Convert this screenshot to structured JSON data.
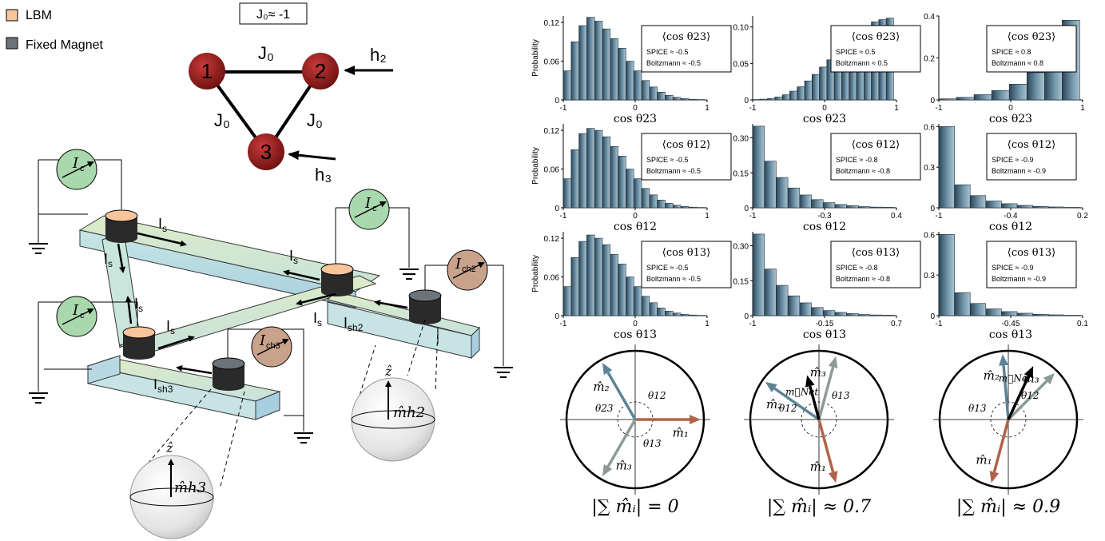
{
  "legend": {
    "lbm": {
      "label": "LBM",
      "color": "#f7c49b"
    },
    "fixed": {
      "label": "Fixed Magnet",
      "color": "#6d7479"
    }
  },
  "graph": {
    "title": "J₀≈ -1",
    "nodes": [
      "1",
      "2",
      "3"
    ],
    "edges": [
      "J₀",
      "J₀",
      "J₀"
    ],
    "fields": [
      "h₂",
      "h₃"
    ]
  },
  "circuit": {
    "currents": {
      "ic": "I",
      "ic_sub": "c",
      "is": "I",
      "is_sub": "s",
      "ich2": "I",
      "ich2_sub": "ch2",
      "ich3": "I",
      "ich3_sub": "ch3",
      "ish2": "I",
      "ish2_sub": "sh2",
      "ish3": "I",
      "ish3_sub": "sh3"
    },
    "sphere_labels": [
      "m̂h2",
      "m̂h3"
    ],
    "z_label": "ẑ"
  },
  "chart_data": [
    {
      "type": "bar",
      "row": 0,
      "col": 0,
      "xlabel": "cos θ23",
      "ylabel": "Probability",
      "xlim": [
        -1,
        1
      ],
      "ylim": [
        0,
        0.13
      ],
      "xticks": [
        "-1",
        "0",
        "1"
      ],
      "yticks": [
        "0",
        "0.06",
        "0.12"
      ],
      "values": [
        0.045,
        0.09,
        0.115,
        0.128,
        0.122,
        0.11,
        0.095,
        0.08,
        0.06,
        0.045,
        0.03,
        0.02,
        0.012,
        0.007,
        0.004,
        0.002,
        0.001,
        0.0005
      ],
      "annotation": {
        "title": "⟨cos θ23⟩",
        "spice": "SPICE ≈ -0.5",
        "boltz": "Boltzmann ≈ -0.5"
      }
    },
    {
      "type": "bar",
      "row": 0,
      "col": 1,
      "xlabel": "cos θ23",
      "ylabel": "",
      "xlim": [
        -1,
        1
      ],
      "ylim": [
        0,
        0.115
      ],
      "xticks": [
        "-1",
        "0",
        "1"
      ],
      "yticks": [
        "0",
        "0.05",
        "0.10"
      ],
      "values": [
        0.0005,
        0.001,
        0.002,
        0.004,
        0.007,
        0.012,
        0.018,
        0.026,
        0.035,
        0.045,
        0.055,
        0.066,
        0.077,
        0.087,
        0.095,
        0.102,
        0.107,
        0.11,
        0.112
      ],
      "annotation": {
        "title": "⟨cos θ23⟩",
        "spice": "SPICE ≈ 0.5",
        "boltz": "Boltzmann ≈ 0.5"
      }
    },
    {
      "type": "bar",
      "row": 0,
      "col": 2,
      "xlabel": "cos θ23",
      "ylabel": "",
      "xlim": [
        -1,
        1
      ],
      "ylim": [
        0,
        0.4
      ],
      "xticks": [
        "-1",
        "0",
        "1"
      ],
      "yticks": [
        "0",
        "0.2",
        "0.4"
      ],
      "values": [
        0.005,
        0.012,
        0.025,
        0.045,
        0.075,
        0.13,
        0.21,
        0.38
      ],
      "annotation": {
        "title": "⟨cos θ23⟩",
        "spice": "SPICE ≈ 0.8",
        "boltz": "Boltzmann ≈ 0.8"
      }
    },
    {
      "type": "bar",
      "row": 1,
      "col": 0,
      "xlabel": "cos θ12",
      "ylabel": "Probability",
      "xlim": [
        -1,
        1
      ],
      "ylim": [
        0,
        0.13
      ],
      "xticks": [
        "-1",
        "0",
        "1"
      ],
      "yticks": [
        "0",
        "0.06",
        "0.12"
      ],
      "values": [
        0.045,
        0.09,
        0.115,
        0.123,
        0.12,
        0.11,
        0.095,
        0.08,
        0.06,
        0.045,
        0.03,
        0.02,
        0.012,
        0.007,
        0.004,
        0.002,
        0.001,
        0.0005
      ],
      "annotation": {
        "title": "⟨cos θ12⟩",
        "spice": "SPICE ≈ -0.5",
        "boltz": "Boltzmann ≈ -0.5"
      }
    },
    {
      "type": "bar",
      "row": 1,
      "col": 1,
      "xlabel": "cos θ12",
      "ylabel": "",
      "xlim": [
        -1,
        0.4
      ],
      "ylim": [
        0,
        0.36
      ],
      "xticks": [
        "-1",
        "-0.3",
        "0.4"
      ],
      "yticks": [
        "0",
        "0.15",
        "0.30"
      ],
      "values": [
        0.35,
        0.2,
        0.13,
        0.085,
        0.055,
        0.035,
        0.022,
        0.014,
        0.009,
        0.005,
        0.003,
        0.002
      ],
      "annotation": {
        "title": "⟨cos θ12⟩",
        "spice": "SPICE ≈ -0.8",
        "boltz": "Boltzmann ≈ -0.8"
      }
    },
    {
      "type": "bar",
      "row": 1,
      "col": 2,
      "xlabel": "cos θ12",
      "ylabel": "",
      "xlim": [
        -1,
        0.2
      ],
      "ylim": [
        0,
        0.62
      ],
      "xticks": [
        "-1",
        "-0.4",
        "0.2"
      ],
      "yticks": [
        "0",
        "0.3",
        "0.6"
      ],
      "values": [
        0.6,
        0.17,
        0.09,
        0.05,
        0.03,
        0.018,
        0.01,
        0.006,
        0.003
      ],
      "annotation": {
        "title": "⟨cos θ12⟩",
        "spice": "SPICE ≈ -0.9",
        "boltz": "Boltzmann ≈ -0.9"
      }
    },
    {
      "type": "bar",
      "row": 2,
      "col": 0,
      "xlabel": "cos θ13",
      "ylabel": "Probability",
      "xlim": [
        -1,
        1
      ],
      "ylim": [
        0,
        0.13
      ],
      "xticks": [
        "-1",
        "0",
        "1"
      ],
      "yticks": [
        "0",
        "0.06",
        "0.12"
      ],
      "values": [
        0.045,
        0.09,
        0.115,
        0.125,
        0.12,
        0.11,
        0.095,
        0.08,
        0.06,
        0.045,
        0.03,
        0.02,
        0.012,
        0.007,
        0.004,
        0.002,
        0.001,
        0.0005
      ],
      "annotation": {
        "title": "⟨cos θ13⟩",
        "spice": "SPICE ≈ -0.5",
        "boltz": "Boltzmann ≈ -0.5"
      }
    },
    {
      "type": "bar",
      "row": 2,
      "col": 1,
      "xlabel": "cos θ13",
      "ylabel": "",
      "xlim": [
        -1,
        0.7
      ],
      "ylim": [
        0,
        0.36
      ],
      "xticks": [
        "-1",
        "-0.15",
        "0.7"
      ],
      "yticks": [
        "0",
        "0.15",
        "0.30"
      ],
      "values": [
        0.35,
        0.2,
        0.13,
        0.085,
        0.055,
        0.035,
        0.022,
        0.014,
        0.009,
        0.005,
        0.003,
        0.002
      ],
      "annotation": {
        "title": "⟨cos θ13⟩",
        "spice": "SPICE ≈ -0.8",
        "boltz": "Boltzmann ≈ -0.8"
      }
    },
    {
      "type": "bar",
      "row": 2,
      "col": 2,
      "xlabel": "cos θ13",
      "ylabel": "",
      "xlim": [
        -1,
        0.1
      ],
      "ylim": [
        0,
        0.62
      ],
      "xticks": [
        "-1",
        "-0.45",
        "0.1"
      ],
      "yticks": [
        "0",
        "0.3",
        "0.6"
      ],
      "values": [
        0.6,
        0.17,
        0.09,
        0.05,
        0.03,
        0.018,
        0.01,
        0.006,
        0.003
      ],
      "annotation": {
        "title": "⟨cos θ13⟩",
        "spice": "SPICE ≈ -0.9",
        "boltz": "Boltzmann ≈ -0.9"
      }
    }
  ],
  "vector_diagrams": [
    {
      "caption": "|∑ m̂ᵢ| = 0",
      "vectors": [
        {
          "label": "m̂₁",
          "angle": 0,
          "color": "#b0634a"
        },
        {
          "label": "m̂₂",
          "angle": 120,
          "color": "#5c8396"
        },
        {
          "label": "m̂₃",
          "angle": 240,
          "color": "#8c9b9a"
        }
      ],
      "angles": [
        "θ12",
        "θ23",
        "θ13"
      ]
    },
    {
      "caption": "|∑ m̂ᵢ| ≈ 0.7",
      "vectors": [
        {
          "label": "m̂₁",
          "angle": -75,
          "color": "#b0634a"
        },
        {
          "label": "m̂₂",
          "angle": 145,
          "color": "#5c8396"
        },
        {
          "label": "m̂₃",
          "angle": 75,
          "color": "#8c9b9a"
        },
        {
          "label": "m⃗Net",
          "angle": 105,
          "color": "#000000",
          "length": 0.7
        }
      ],
      "angles": [
        "θ13",
        "θ12"
      ]
    },
    {
      "caption": "|∑ m̂ᵢ| ≈ 0.9",
      "vectors": [
        {
          "label": "m̂₁",
          "angle": -105,
          "color": "#b0634a"
        },
        {
          "label": "m̂₂",
          "angle": 95,
          "color": "#5c8396"
        },
        {
          "label": "m̂₃",
          "angle": 45,
          "color": "#8c9b9a"
        },
        {
          "label": "m⃗Net",
          "angle": 65,
          "color": "#000000",
          "length": 0.9
        }
      ],
      "angles": [
        "θ12",
        "θ13"
      ]
    }
  ]
}
